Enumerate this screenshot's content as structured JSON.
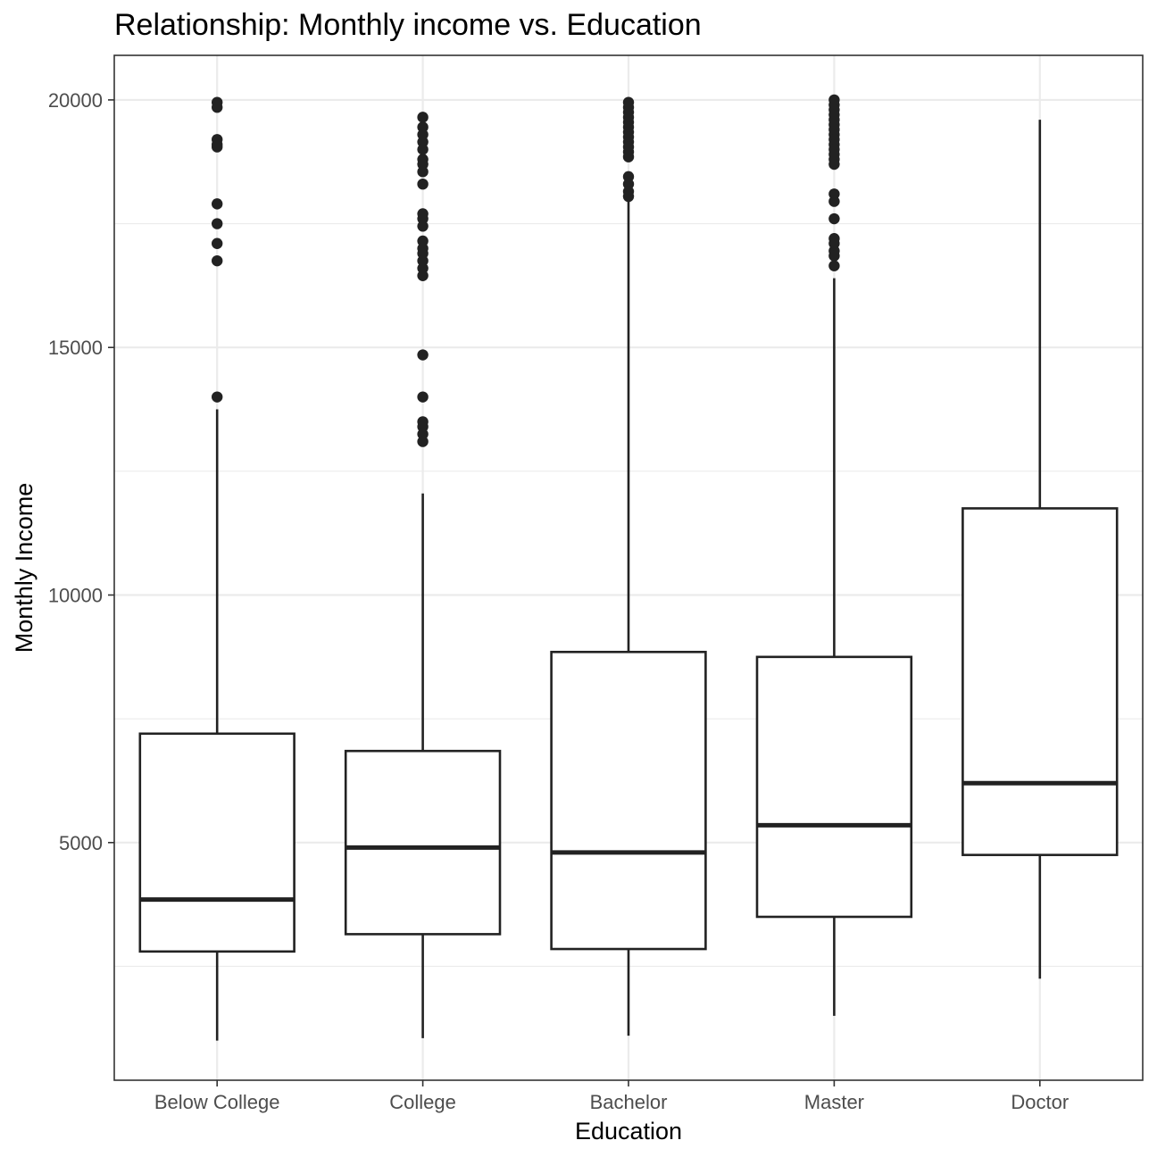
{
  "chart_data": {
    "type": "boxplot",
    "title": "Relationship: Monthly income vs. Education",
    "xlabel": "Education",
    "ylabel": "Monthly Income",
    "categories": [
      "Below College",
      "College",
      "Bachelor",
      "Master",
      "Doctor"
    ],
    "ylim": [
      200,
      20900
    ],
    "yticks": [
      5000,
      10000,
      15000,
      20000
    ],
    "grid": true,
    "boxes": [
      {
        "category": "Below College",
        "whisker_low": 1000,
        "q1": 2800,
        "median": 3850,
        "q3": 7200,
        "whisker_high": 13750,
        "outliers": [
          19950,
          19850,
          19200,
          19100,
          19050,
          17900,
          17500,
          17100,
          16750,
          14000
        ]
      },
      {
        "category": "College",
        "whisker_low": 1050,
        "q1": 3150,
        "median": 4900,
        "q3": 6850,
        "whisker_high": 12050,
        "outliers": [
          19650,
          19450,
          19300,
          19150,
          19000,
          18800,
          18700,
          18550,
          18300,
          17700,
          17600,
          17450,
          17150,
          17000,
          16900,
          16750,
          16600,
          16450,
          14850,
          14000,
          13500,
          13400,
          13250,
          13100
        ]
      },
      {
        "category": "Bachelor",
        "whisker_low": 1100,
        "q1": 2850,
        "median": 4800,
        "q3": 8850,
        "whisker_high": 17950,
        "outliers": [
          19950,
          19850,
          19750,
          19650,
          19550,
          19450,
          19350,
          19250,
          19150,
          19050,
          18950,
          18850,
          18450,
          18300,
          18150,
          18050
        ]
      },
      {
        "category": "Master",
        "whisker_low": 1500,
        "q1": 3500,
        "median": 5350,
        "q3": 8750,
        "whisker_high": 16400,
        "outliers": [
          20000,
          19900,
          19800,
          19700,
          19600,
          19500,
          19400,
          19300,
          19200,
          19100,
          19000,
          18900,
          18800,
          18700,
          18100,
          17950,
          17600,
          17200,
          17100,
          16950,
          16850,
          16650
        ]
      },
      {
        "category": "Doctor",
        "whisker_low": 2250,
        "q1": 4750,
        "median": 6200,
        "q3": 11750,
        "whisker_high": 19600,
        "outliers": []
      }
    ]
  }
}
